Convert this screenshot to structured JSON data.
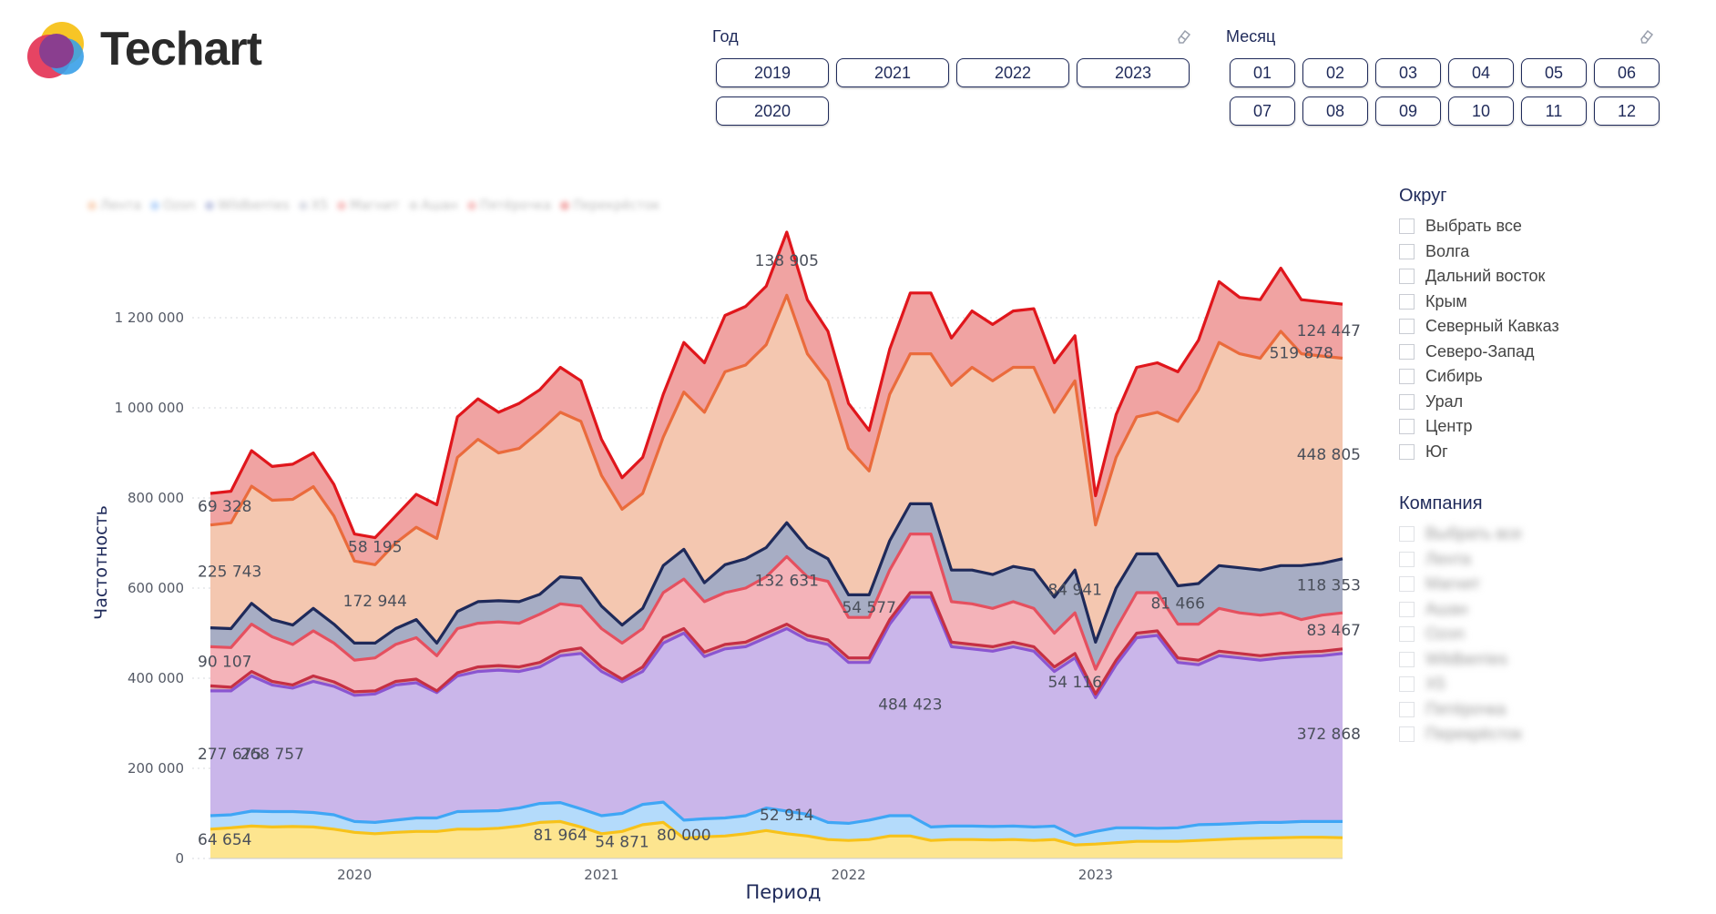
{
  "brand": {
    "name": "Techart"
  },
  "filters": {
    "year": {
      "title": "Год",
      "options": [
        "2019",
        "2021",
        "2022",
        "2023",
        "2020"
      ]
    },
    "month": {
      "title": "Месяц",
      "options": [
        "01",
        "02",
        "03",
        "04",
        "05",
        "06",
        "07",
        "08",
        "09",
        "10",
        "11",
        "12"
      ]
    },
    "district": {
      "title": "Округ",
      "items": [
        "Выбрать все",
        "Волга",
        "Дальний восток",
        "Крым",
        "Северный Кавказ",
        "Северо-Запад",
        "Сибирь",
        "Урал",
        "Центр",
        "Юг"
      ]
    },
    "company": {
      "title": "Компания",
      "items": [
        "Выбрать все",
        "Лента",
        "Магнит",
        "Ашан",
        "Ozon",
        "Wildberries",
        "X5",
        "Пятёрочка",
        "Перекрёсток"
      ]
    }
  },
  "legend": [
    "Лента",
    "Ozon",
    "Wildberries",
    "X5",
    "Магнит",
    "Ашан",
    "Пятёрочка",
    "Перекрёсток"
  ],
  "chart_data": {
    "type": "area",
    "stacked": true,
    "xlabel": "Период",
    "ylabel": "Частотность",
    "ylim": [
      0,
      1400000
    ],
    "x_ticks": [
      "2020",
      "2021",
      "2022",
      "2023"
    ],
    "y_ticks": [
      "0",
      "200 000",
      "400 000",
      "600 000",
      "800 000",
      "1 000 000",
      "1 200 000"
    ],
    "y_tick_values": [
      0,
      200000,
      400000,
      600000,
      800000,
      1000000,
      1200000
    ],
    "periods": [
      "2019-06",
      "2019-07",
      "2019-08",
      "2019-09",
      "2019-10",
      "2019-11",
      "2019-12",
      "2020-01",
      "2020-02",
      "2020-03",
      "2020-04",
      "2020-05",
      "2020-06",
      "2020-07",
      "2020-08",
      "2020-09",
      "2020-10",
      "2020-11",
      "2020-12",
      "2021-01",
      "2021-02",
      "2021-03",
      "2021-04",
      "2021-05",
      "2021-06",
      "2021-07",
      "2021-08",
      "2021-09",
      "2021-10",
      "2021-11",
      "2021-12",
      "2022-01",
      "2022-02",
      "2022-03",
      "2022-04",
      "2022-05",
      "2022-06",
      "2022-07",
      "2022-08",
      "2022-09",
      "2022-10",
      "2022-11",
      "2022-12",
      "2023-01",
      "2023-02",
      "2023-03",
      "2023-04",
      "2023-05",
      "2023-06",
      "2023-07",
      "2023-08",
      "2023-09",
      "2023-10",
      "2023-11",
      "2023-12",
      "2024-01"
    ],
    "cumulative": [
      {
        "name": "Лента",
        "color": "#f7c21a",
        "fill": "#fde58f",
        "values": [
          65000,
          68000,
          72000,
          70000,
          71000,
          70000,
          65000,
          58000,
          55000,
          58000,
          60000,
          60000,
          65000,
          65000,
          67000,
          72000,
          80000,
          82000,
          70000,
          55000,
          60000,
          75000,
          80000,
          45000,
          48000,
          50000,
          55000,
          62000,
          55000,
          50000,
          42000,
          40000,
          42000,
          50000,
          50000,
          40000,
          42000,
          42000,
          41000,
          42000,
          40000,
          42000,
          30000,
          32000,
          35000,
          38000,
          38000,
          38000,
          40000,
          42000,
          44000,
          45000,
          46000,
          47000,
          47000,
          46000
        ]
      },
      {
        "name": "Ozon",
        "color": "#3fa6f5",
        "fill": "#b4dbfb",
        "values": [
          95000,
          97000,
          105000,
          104000,
          104000,
          102000,
          97000,
          82000,
          80000,
          85000,
          90000,
          90000,
          104000,
          105000,
          106000,
          112000,
          122000,
          124000,
          110000,
          95000,
          100000,
          120000,
          125000,
          85000,
          88000,
          90000,
          95000,
          112000,
          105000,
          98000,
          80000,
          78000,
          85000,
          95000,
          95000,
          70000,
          72000,
          72000,
          71000,
          72000,
          70000,
          72000,
          50000,
          60000,
          68000,
          68000,
          67000,
          68000,
          75000,
          76000,
          78000,
          80000,
          80000,
          82000,
          82000,
          82000
        ]
      },
      {
        "name": "Wildberries",
        "color": "#8a55d1",
        "fill": "#cab6ea",
        "values": [
          372000,
          372000,
          405000,
          385000,
          378000,
          393000,
          382000,
          362000,
          365000,
          385000,
          390000,
          368000,
          405000,
          415000,
          418000,
          415000,
          425000,
          450000,
          455000,
          415000,
          392000,
          415000,
          478000,
          500000,
          448000,
          465000,
          470000,
          490000,
          510000,
          485000,
          475000,
          435000,
          435000,
          520000,
          580000,
          580000,
          470000,
          465000,
          460000,
          470000,
          460000,
          415000,
          445000,
          357000,
          430000,
          490000,
          495000,
          435000,
          430000,
          450000,
          445000,
          440000,
          445000,
          448000,
          450000,
          455000
        ]
      },
      {
        "name": "X5",
        "color": "#c63043",
        "fill": "#d9a7b2",
        "values": [
          383000,
          380000,
          415000,
          393000,
          385000,
          405000,
          392000,
          370000,
          372000,
          393000,
          398000,
          372000,
          412000,
          425000,
          428000,
          425000,
          435000,
          460000,
          467000,
          425000,
          398000,
          425000,
          490000,
          510000,
          458000,
          475000,
          480000,
          500000,
          520000,
          495000,
          485000,
          445000,
          445000,
          530000,
          590000,
          590000,
          480000,
          475000,
          470000,
          480000,
          470000,
          425000,
          455000,
          365000,
          440000,
          500000,
          505000,
          445000,
          440000,
          460000,
          455000,
          450000,
          455000,
          458000,
          460000,
          465000
        ]
      },
      {
        "name": "Магнит",
        "color": "#e5505f",
        "fill": "#f4b3b9",
        "values": [
          470000,
          468000,
          520000,
          492000,
          475000,
          505000,
          478000,
          440000,
          445000,
          475000,
          490000,
          450000,
          510000,
          522000,
          525000,
          522000,
          542000,
          565000,
          560000,
          510000,
          478000,
          510000,
          590000,
          620000,
          570000,
          590000,
          600000,
          625000,
          670000,
          625000,
          615000,
          535000,
          535000,
          640000,
          720000,
          720000,
          570000,
          565000,
          555000,
          570000,
          555000,
          500000,
          545000,
          420000,
          510000,
          590000,
          590000,
          520000,
          520000,
          555000,
          545000,
          540000,
          545000,
          530000,
          540000,
          545000
        ]
      },
      {
        "name": "Ашан",
        "color": "#1f2a5a",
        "fill": "#a7adc4",
        "values": [
          512000,
          510000,
          566000,
          530000,
          518000,
          555000,
          520000,
          478000,
          478000,
          510000,
          530000,
          478000,
          548000,
          570000,
          572000,
          570000,
          586000,
          625000,
          622000,
          560000,
          518000,
          555000,
          650000,
          686000,
          612000,
          652000,
          665000,
          690000,
          745000,
          690000,
          665000,
          585000,
          585000,
          705000,
          787000,
          787000,
          640000,
          640000,
          630000,
          648000,
          640000,
          580000,
          640000,
          480000,
          600000,
          676000,
          676000,
          605000,
          610000,
          650000,
          645000,
          640000,
          650000,
          650000,
          655000,
          665000
        ]
      },
      {
        "name": "Пятёрочка",
        "color": "#ea6b3c",
        "fill": "#f4c7b0",
        "values": [
          740000,
          745000,
          826000,
          795000,
          797000,
          825000,
          760000,
          660000,
          652000,
          700000,
          735000,
          710000,
          890000,
          930000,
          900000,
          910000,
          948000,
          990000,
          970000,
          850000,
          775000,
          810000,
          935000,
          1035000,
          990000,
          1080000,
          1095000,
          1140000,
          1250000,
          1120000,
          1060000,
          910000,
          860000,
          1030000,
          1120000,
          1120000,
          1050000,
          1090000,
          1060000,
          1090000,
          1090000,
          990000,
          1060000,
          740000,
          890000,
          980000,
          990000,
          970000,
          1040000,
          1145000,
          1120000,
          1110000,
          1170000,
          1120000,
          1115000,
          1110000
        ]
      },
      {
        "name": "Перекрёсток",
        "color": "#e0161c",
        "fill": "#f0a3a2",
        "values": [
          810000,
          815000,
          905000,
          870000,
          875000,
          900000,
          830000,
          720000,
          712000,
          760000,
          808000,
          785000,
          980000,
          1020000,
          990000,
          1010000,
          1040000,
          1090000,
          1060000,
          930000,
          845000,
          890000,
          1030000,
          1145000,
          1100000,
          1205000,
          1225000,
          1270000,
          1390000,
          1240000,
          1170000,
          1010000,
          950000,
          1130000,
          1255000,
          1255000,
          1155000,
          1215000,
          1185000,
          1215000,
          1220000,
          1100000,
          1160000,
          805000,
          985000,
          1090000,
          1100000,
          1080000,
          1150000,
          1280000,
          1245000,
          1240000,
          1310000,
          1240000,
          1235000,
          1230000
        ]
      }
    ],
    "data_labels": [
      {
        "text": "69 328",
        "i": 0,
        "v": 770000
      },
      {
        "text": "225 743",
        "i": 0,
        "v": 625000
      },
      {
        "text": "90 107",
        "i": 0,
        "v": 425000
      },
      {
        "text": "277 675",
        "i": 0,
        "v": 220000
      },
      {
        "text": "268 757",
        "i": 3,
        "v": 220000
      },
      {
        "text": "64 654",
        "i": 0,
        "v": 30000
      },
      {
        "text": "58 195",
        "i": 8,
        "v": 680000
      },
      {
        "text": "172 944",
        "i": 8,
        "v": 560000
      },
      {
        "text": "81 964",
        "i": 17,
        "v": 40000
      },
      {
        "text": "54 871",
        "i": 20,
        "v": 25000
      },
      {
        "text": "80 000",
        "i": 23,
        "v": 40000
      },
      {
        "text": "138 905",
        "i": 28,
        "v": 1315000
      },
      {
        "text": "132 631",
        "i": 28,
        "v": 605000
      },
      {
        "text": "52 914",
        "i": 28,
        "v": 85000
      },
      {
        "text": "54 577",
        "i": 32,
        "v": 545000
      },
      {
        "text": "484 423",
        "i": 34,
        "v": 330000
      },
      {
        "text": "84 941",
        "i": 42,
        "v": 585000
      },
      {
        "text": "54 116",
        "i": 42,
        "v": 380000
      },
      {
        "text": "81 466",
        "i": 47,
        "v": 555000
      },
      {
        "text": "124 447",
        "i": 55,
        "v": 1160000
      },
      {
        "text": "519 878",
        "i": 53,
        "v": 1110000
      },
      {
        "text": "448 805",
        "i": 55,
        "v": 885000
      },
      {
        "text": "118 353",
        "i": 55,
        "v": 595000
      },
      {
        "text": "83 467",
        "i": 55,
        "v": 495000
      },
      {
        "text": "372 868",
        "i": 55,
        "v": 265000
      }
    ]
  }
}
